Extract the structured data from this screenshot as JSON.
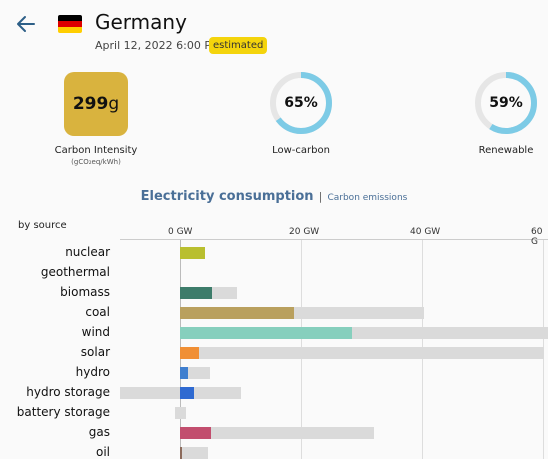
{
  "header": {
    "country": "Germany",
    "datetime": "April 12, 2022 6:00 PM",
    "badge": "estimated",
    "back_icon": "arrow-left-icon",
    "flag_icon": "germany-flag-icon"
  },
  "metrics": {
    "carbon_intensity": {
      "value": "299",
      "unit": "g",
      "label": "Carbon Intensity",
      "sublabel": "(gCO₂eq/kWh)",
      "color": "#d9b33e"
    },
    "low_carbon": {
      "value": "65%",
      "fraction": 0.65,
      "label": "Low-carbon"
    },
    "renewable": {
      "value": "59%",
      "fraction": 0.59,
      "label": "Renewable"
    },
    "ring_color": "#7dcbe6",
    "ring_track_color": "#e6e6e6"
  },
  "chart_header": {
    "active": "Electricity consumption",
    "separator": "|",
    "inactive": "Carbon emissions"
  },
  "chart_data": {
    "type": "bar",
    "ylabel": "by source",
    "x_ticks": [
      "0 GW",
      "20 GW",
      "40 GW",
      "60 G"
    ],
    "x_unit": "GW",
    "categories": [
      "nuclear",
      "geothermal",
      "biomass",
      "coal",
      "wind",
      "solar",
      "hydro",
      "hydro storage",
      "battery storage",
      "gas",
      "oil"
    ],
    "series": [
      {
        "values": [
          4.2,
          0,
          5.3,
          18.8,
          28.4,
          3.1,
          1.4,
          2.3,
          0,
          5.2,
          0.3
        ]
      },
      {
        "values": [
          4.2,
          0,
          9.5,
          40.4,
          60.8,
          60.1,
          5.0,
          10.0,
          1.0,
          32.0,
          4.6
        ]
      }
    ],
    "negative_capacity": [
      0,
      0,
      0,
      0,
      0,
      0,
      0,
      -10.0,
      -0.8,
      0,
      0
    ],
    "colors": {
      "nuclear": "#b9bf2f",
      "geothermal": "#a0522d",
      "biomass": "#3d7c6a",
      "coal": "#b9a05e",
      "wind": "#86cfbd",
      "solar": "#f08f35",
      "hydro": "#3f7fcf",
      "hydro storage": "#2f6ad1",
      "battery storage": "#9fa6ab",
      "gas": "#c24e6e",
      "oil": "#8c6b5c"
    },
    "capacity_color": "#dadada"
  }
}
